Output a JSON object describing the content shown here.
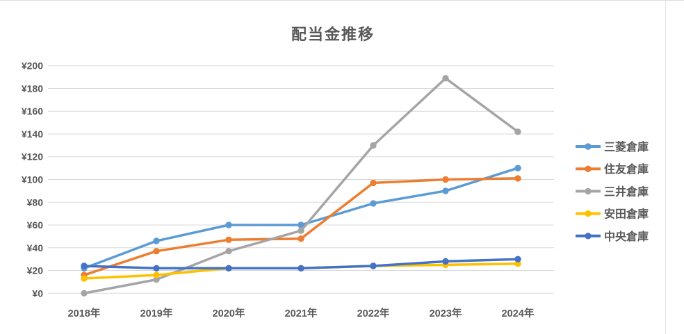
{
  "title": "配当金推移",
  "chart_data": {
    "type": "line",
    "title": "配当金推移",
    "categories": [
      "2018年",
      "2019年",
      "2020年",
      "2021年",
      "2022年",
      "2023年",
      "2024年"
    ],
    "series": [
      {
        "name": "三菱倉庫",
        "slug": "mitsubishi-soko",
        "color": "#5B9BD5",
        "values": [
          22,
          46,
          60,
          60,
          79,
          90,
          110
        ]
      },
      {
        "name": "住友倉庫",
        "slug": "sumitomo-soko",
        "color": "#ED7D31",
        "values": [
          16,
          37,
          47,
          48,
          97,
          100,
          101
        ]
      },
      {
        "name": "三井倉庫",
        "slug": "mitsui-soko",
        "color": "#A5A5A5",
        "values": [
          0,
          12,
          37,
          55,
          130,
          189,
          142
        ]
      },
      {
        "name": "安田倉庫",
        "slug": "yasuda-soko",
        "color": "#FFC000",
        "values": [
          13,
          16,
          22,
          22,
          24,
          25,
          26
        ]
      },
      {
        "name": "中央倉庫",
        "slug": "chuo-soko",
        "color": "#4472C4",
        "values": [
          24,
          22,
          22,
          22,
          24,
          28,
          30
        ]
      }
    ],
    "y_axis": {
      "min": 0,
      "max": 200,
      "step": 20,
      "tick_labels": [
        "¥0",
        "¥20",
        "¥40",
        "¥60",
        "¥80",
        "¥100",
        "¥120",
        "¥140",
        "¥160",
        "¥180",
        "¥200"
      ]
    },
    "x_axis": {
      "labels": [
        "2018年",
        "2019年",
        "2020年",
        "2021年",
        "2022年",
        "2023年",
        "2024年"
      ]
    },
    "legend_position": "right",
    "grid": true,
    "style": {
      "grid_color": "#d9d9d9",
      "text_color": "#595959",
      "background": "#ffffff",
      "line_width": 3.5,
      "marker_radius": 4.7
    }
  }
}
